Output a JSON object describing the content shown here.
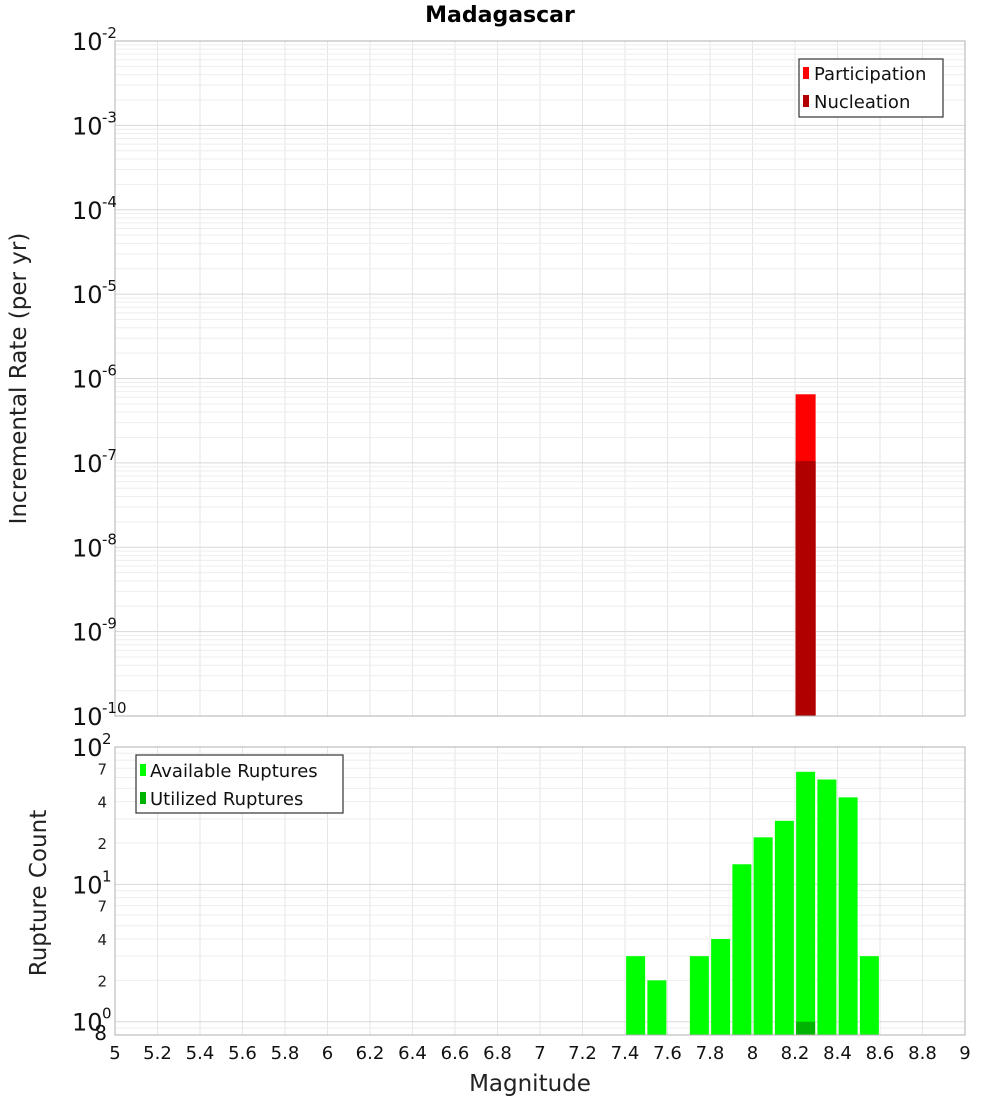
{
  "chart_data": [
    {
      "type": "bar",
      "title": "Madagascar",
      "xlabel": "",
      "ylabel": "Incremental Rate (per yr)",
      "yscale": "log",
      "ylim": [
        1e-10,
        0.01
      ],
      "xlim": [
        5,
        9
      ],
      "grid": true,
      "legend_position": "top-right",
      "series": [
        {
          "name": "Participation",
          "color": "#ff0000",
          "x": [
            8.25
          ],
          "values": [
            6.5e-07
          ]
        },
        {
          "name": "Nucleation",
          "color": "#b00000",
          "x": [
            8.25
          ],
          "values": [
            1.05e-07
          ]
        }
      ],
      "y_tick_exponents": [
        "-2",
        "-3",
        "-4",
        "-5",
        "-6",
        "-7",
        "-8",
        "-9",
        "-10"
      ]
    },
    {
      "type": "bar",
      "xlabel": "Magnitude",
      "ylabel": "Rupture Count",
      "yscale": "log",
      "ylim": [
        0.8,
        100
      ],
      "xlim": [
        5,
        9
      ],
      "grid": true,
      "legend_position": "top-left",
      "series": [
        {
          "name": "Available Ruptures",
          "color": "#00ff00",
          "x": [
            7.45,
            7.55,
            7.75,
            7.85,
            7.95,
            8.05,
            8.15,
            8.25,
            8.35,
            8.45,
            8.55
          ],
          "values": [
            3,
            2,
            3,
            4,
            14,
            22,
            29,
            66,
            58,
            43,
            3
          ]
        },
        {
          "name": "Utilized Ruptures",
          "color": "#00b300",
          "x": [
            8.25
          ],
          "values": [
            1
          ]
        }
      ],
      "y_major_exponents": [
        "2",
        "1",
        "0"
      ],
      "y_minor_labels": [
        {
          "value": 70,
          "label": "7"
        },
        {
          "value": 40,
          "label": "4"
        },
        {
          "value": 20,
          "label": "2"
        },
        {
          "value": 7,
          "label": "7"
        },
        {
          "value": 4,
          "label": "4"
        },
        {
          "value": 2,
          "label": "2"
        },
        {
          "value": 0.8,
          "label": "8"
        }
      ],
      "x_tick_labels": [
        "5",
        "5.2",
        "5.4",
        "5.6",
        "5.8",
        "6",
        "6.2",
        "6.4",
        "6.6",
        "6.8",
        "7",
        "7.2",
        "7.4",
        "7.6",
        "7.8",
        "8",
        "8.2",
        "8.4",
        "8.6",
        "8.8",
        "9"
      ]
    }
  ]
}
